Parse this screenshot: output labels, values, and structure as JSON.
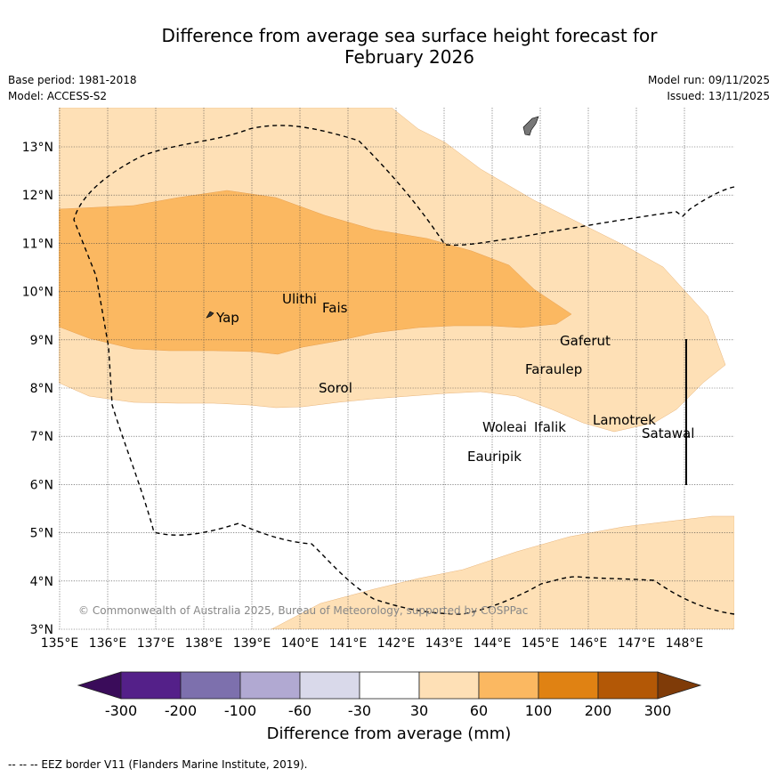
{
  "title_line1": "Difference from average sea surface height forecast for",
  "title_line2": "February 2026",
  "base_period": "Base period: 1981-2018",
  "model": "Model: ACCESS-S2",
  "model_run": "Model run: 09/11/2025",
  "issued": "Issued: 13/11/2025",
  "copyright": "© Commonwealth of Australia 2025, Bureau of Meteorology, supported by COSPPac",
  "footnote": "--  --  -- EEZ border V11 (Flanders Marine Institute, 2019).",
  "lat_labels": [
    "13°N",
    "12°N",
    "11°N",
    "10°N",
    "9°N",
    "8°N",
    "7°N",
    "6°N",
    "5°N",
    "4°N",
    "3°N"
  ],
  "lon_labels": [
    "135°E",
    "136°E",
    "137°E",
    "138°E",
    "139°E",
    "140°E",
    "141°E",
    "142°E",
    "143°E",
    "144°E",
    "145°E",
    "146°E",
    "147°E",
    "148°E"
  ],
  "places": {
    "yap": "Yap",
    "ulithi": "Ulithi",
    "fais": "Fais",
    "gaferut": "Gaferut",
    "faraulep": "Faraulep",
    "sorol": "Sorol",
    "woleai": "Woleai",
    "ifalik": "Ifalik",
    "lamotrek": "Lamotrek",
    "satawal": "Satawal",
    "eauripik": "Eauripik"
  },
  "colorbar": {
    "title": "Difference from average (mm)",
    "labels": [
      "-300",
      "-200",
      "-100",
      "-60",
      "-30",
      "30",
      "60",
      "100",
      "200",
      "300"
    ],
    "colors": {
      "neg_extend": "#3a0c5a",
      "neg300_200": "#542089",
      "neg200_100": "#7d70ad",
      "neg100_60": "#b1a9d2",
      "neg60_30": "#d9d9ea",
      "neutral": "#ffffff",
      "pos30_60": "#fee0b6",
      "pos60_100": "#fbb861",
      "pos100_200": "#e08213",
      "pos200_300": "#b35806",
      "pos_extend": "#7f3b08"
    }
  }
}
